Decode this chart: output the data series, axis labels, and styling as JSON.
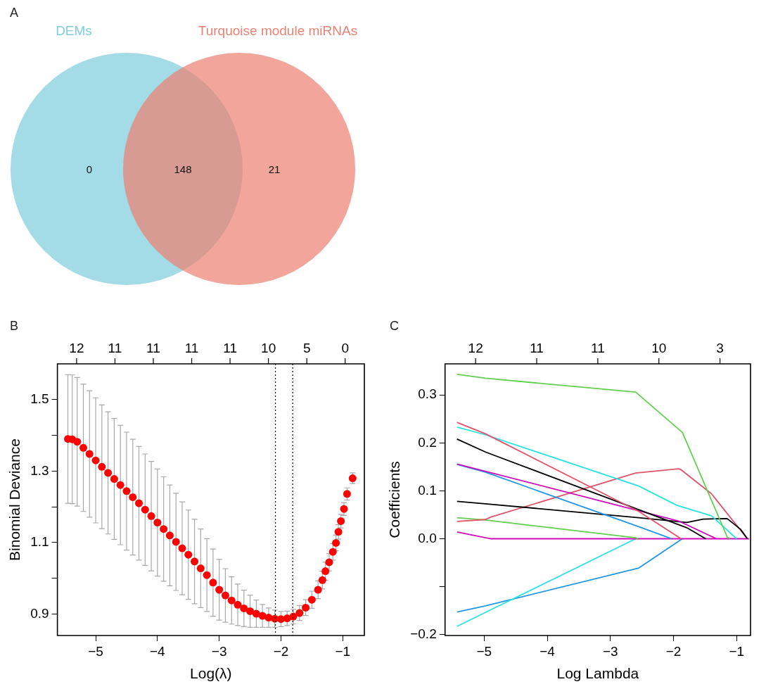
{
  "chart_data": [
    {
      "type": "other",
      "title": "A",
      "series": [
        {
          "name": "DEMs",
          "color": "#7fcddd"
        },
        {
          "name": "Turquoise module miRNAs",
          "color": "#ec8274"
        }
      ],
      "annotations": [
        "0",
        "148",
        "21"
      ]
    },
    {
      "type": "scatter",
      "title": "B",
      "xlabel": "Log(λ)",
      "ylabel": "Binomial Deviance",
      "color": "#ff0000",
      "marker": "circle",
      "grid": false,
      "legend": false,
      "x": [
        -5.45,
        -5.38,
        -5.3,
        -5.2,
        -5.1,
        -5.0,
        -4.9,
        -4.8,
        -4.7,
        -4.6,
        -4.5,
        -4.4,
        -4.3,
        -4.2,
        -4.1,
        -4.0,
        -3.9,
        -3.8,
        -3.7,
        -3.6,
        -3.5,
        -3.4,
        -3.3,
        -3.2,
        -3.1,
        -3.0,
        -2.9,
        -2.8,
        -2.7,
        -2.6,
        -2.5,
        -2.4,
        -2.3,
        -2.2,
        -2.1,
        -2.0,
        -1.9,
        -1.8,
        -1.7,
        -1.6,
        -1.5,
        -1.4,
        -1.33,
        -1.28,
        -1.22,
        -1.16,
        -1.11,
        -1.07,
        -1.03,
        -0.98,
        -0.93,
        -0.84
      ],
      "values": [
        1.39,
        1.389,
        1.382,
        1.365,
        1.348,
        1.33,
        1.312,
        1.295,
        1.278,
        1.261,
        1.244,
        1.227,
        1.21,
        1.192,
        1.174,
        1.156,
        1.138,
        1.12,
        1.102,
        1.084,
        1.066,
        1.047,
        1.028,
        1.009,
        0.988,
        0.968,
        0.952,
        0.938,
        0.926,
        0.916,
        0.908,
        0.901,
        0.895,
        0.89,
        0.887,
        0.886,
        0.888,
        0.893,
        0.903,
        0.918,
        0.94,
        0.968,
        0.995,
        1.02,
        1.045,
        1.074,
        1.099,
        1.13,
        1.16,
        1.194,
        1.236,
        1.28
      ],
      "errors": [
        0.18,
        0.18,
        0.18,
        0.178,
        0.177,
        0.175,
        0.173,
        0.171,
        0.169,
        0.167,
        0.165,
        0.162,
        0.159,
        0.156,
        0.153,
        0.15,
        0.146,
        0.141,
        0.136,
        0.13,
        0.125,
        0.118,
        0.11,
        0.102,
        0.094,
        0.085,
        0.075,
        0.066,
        0.058,
        0.051,
        0.045,
        0.038,
        0.032,
        0.027,
        0.024,
        0.021,
        0.02,
        0.02,
        0.021,
        0.022,
        0.024,
        0.025,
        0.025,
        0.025,
        0.024,
        0.023,
        0.022,
        0.02,
        0.019,
        0.018,
        0.017,
        0.015
      ],
      "xlim": [
        -5.62,
        -0.65
      ],
      "xticks": [
        -5,
        -4,
        -3,
        -2,
        -1
      ],
      "ylim": [
        0.84,
        1.6
      ],
      "yticks": [
        0.9,
        {
          "value": 1.0,
          "label": null
        },
        1.1,
        {
          "value": 1.2,
          "label": null
        },
        1.3,
        {
          "value": 1.4,
          "label": null
        },
        1.5
      ],
      "annotations": [
        "12",
        "11",
        "11",
        "11",
        "11",
        "10",
        "5",
        "0"
      ],
      "ref_lines": [
        {
          "axis": "x",
          "value": -2.09,
          "color": "#000000",
          "line_style": "dotted"
        },
        {
          "axis": "x",
          "value": -1.81,
          "color": "#000000",
          "line_style": "dotted"
        }
      ]
    },
    {
      "type": "line",
      "title": "C",
      "xlabel": "Log Lambda",
      "ylabel": "Coefficients",
      "grid": false,
      "legend": false,
      "marker": "none",
      "line_style": "solid",
      "series": [
        {
          "color": "#61d04f",
          "x": [
            -5.43,
            -4.98,
            -2.6,
            -1.86,
            -1.15,
            -1.11
          ],
          "values": [
            0.343,
            0.335,
            0.306,
            0.222,
            0.004,
            0
          ]
        },
        {
          "color": "#df536b",
          "x": [
            -5.43,
            -4.98,
            -2.55,
            -1.88
          ],
          "values": [
            0.243,
            0.219,
            0.057,
            0
          ]
        },
        {
          "color": "#28e2e5",
          "x": [
            -5.43,
            -4.98,
            -2.55,
            -1.95,
            -1.4,
            -1.0
          ],
          "values": [
            0.233,
            0.217,
            0.11,
            0.07,
            0.048,
            0
          ]
        },
        {
          "color": "#000000",
          "x": [
            -5.43,
            -4.98,
            -1.79,
            -1.49
          ],
          "values": [
            0.208,
            0.181,
            0.023,
            0
          ]
        },
        {
          "color": "#cd0bbc",
          "x": [
            -5.43,
            -1.92,
            -1.32
          ],
          "values": [
            0.156,
            0.037,
            0
          ]
        },
        {
          "color": "#2297e6",
          "x": [
            -5.43,
            -4.98,
            -2.55,
            -2.03
          ],
          "values": [
            0.155,
            0.139,
            0.025,
            0
          ]
        },
        {
          "color": "#000000",
          "x": [
            -5.43,
            -4.98,
            -2.55,
            -1.79,
            -1.53,
            -1.15,
            -0.94,
            -0.83
          ],
          "values": [
            0.078,
            0.073,
            0.044,
            0.034,
            0.041,
            0.042,
            0.02,
            0
          ]
        },
        {
          "color": "#df536b",
          "x": [
            -5.43,
            -4.98,
            -4.9,
            -2.6,
            -1.92,
            -1.88,
            -1.4,
            -0.83
          ],
          "values": [
            0.036,
            0.04,
            0.045,
            0.137,
            0.146,
            0.144,
            0.094,
            0
          ]
        },
        {
          "color": "#61d04f",
          "x": [
            -5.43,
            -4.98,
            -2.6,
            -2.56
          ],
          "values": [
            0.044,
            0.039,
            0.002,
            0
          ]
        },
        {
          "color": "#cd0bbc",
          "x": [
            -5.43,
            -4.9,
            -0.8
          ],
          "values": [
            0.014,
            0,
            0
          ]
        },
        {
          "color": "#28e2e5",
          "x": [
            -5.43,
            -2.6
          ],
          "values": [
            -0.183,
            0
          ]
        },
        {
          "color": "#2297e6",
          "x": [
            -5.43,
            -4.98,
            -2.55,
            -1.86
          ],
          "values": [
            -0.153,
            -0.14,
            -0.061,
            0
          ]
        }
      ],
      "xlim": [
        -5.62,
        -0.78
      ],
      "xticks": [
        -5,
        -4,
        -3,
        -2,
        -1
      ],
      "ylim": [
        -0.202,
        0.365
      ],
      "yticks": [
        -0.2,
        {
          "value": -0.1,
          "label": null
        },
        {
          "value": 0,
          "label": "0.0"
        },
        0.1,
        0.2,
        0.3
      ],
      "annotations": [
        "12",
        "11",
        "11",
        "10",
        "3"
      ]
    }
  ]
}
